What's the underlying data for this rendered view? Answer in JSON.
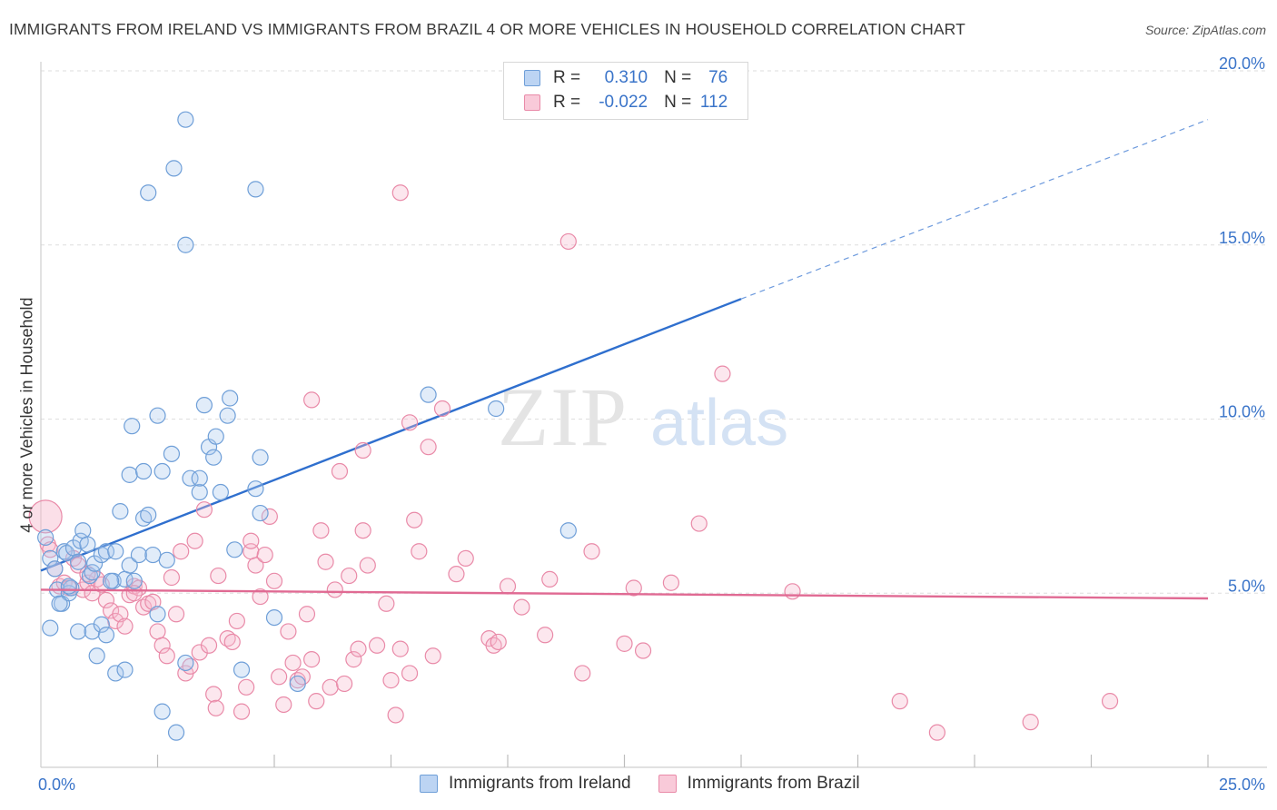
{
  "title": "IMMIGRANTS FROM IRELAND VS IMMIGRANTS FROM BRAZIL 4 OR MORE VEHICLES IN HOUSEHOLD CORRELATION CHART",
  "source": "Source: ZipAtlas.com",
  "watermark": {
    "zip": "ZIP",
    "atlas": "atlas"
  },
  "legend": {
    "r_label": "R =",
    "n_label": "N =",
    "series": [
      {
        "r": "0.310",
        "n": "76"
      },
      {
        "r": "-0.022",
        "n": "112"
      }
    ]
  },
  "bottom_legend": [
    "Immigrants from Ireland",
    "Immigrants from Brazil"
  ],
  "colors": {
    "ireland_fill": "#a9c8ef",
    "ireland_stroke": "#6f9fd8",
    "ireland_line": "#2f6fce",
    "brazil_fill": "#f6b9cd",
    "brazil_stroke": "#e98aa8",
    "brazil_line": "#e06a93",
    "tick_text": "#3a74c9",
    "grid": "#dedede"
  },
  "chart_data": {
    "type": "scatter",
    "title": "IMMIGRANTS FROM IRELAND VS IMMIGRANTS FROM BRAZIL 4 OR MORE VEHICLES IN HOUSEHOLD CORRELATION CHART",
    "xlabel": "",
    "ylabel": "4 or more Vehicles in Household",
    "xlim": [
      0,
      25
    ],
    "ylim": [
      0,
      20
    ],
    "x_tick_labels": [
      {
        "value": 0,
        "label": "0.0%"
      },
      {
        "value": 25,
        "label": "25.0%"
      }
    ],
    "x_minor_ticks": [
      2.5,
      5,
      7.5,
      10,
      12.5,
      15,
      17.5,
      20,
      22.5,
      25
    ],
    "y_ticks": [
      {
        "value": 5,
        "label": "5.0%"
      },
      {
        "value": 10,
        "label": "10.0%"
      },
      {
        "value": 15,
        "label": "15.0%"
      },
      {
        "value": 20,
        "label": "20.0%"
      }
    ],
    "series": [
      {
        "name": "Immigrants from Ireland",
        "r": 0.31,
        "n": 76,
        "trend": {
          "x0": 0,
          "y0": 5.65,
          "x1": 15,
          "y1": 13.45,
          "dash_to_x": 25,
          "dash_to_y": 18.6
        },
        "points": [
          [
            0.1,
            6.6
          ],
          [
            0.2,
            6.0
          ],
          [
            0.3,
            5.7
          ],
          [
            0.35,
            5.1
          ],
          [
            0.45,
            4.7
          ],
          [
            0.5,
            6.2
          ],
          [
            0.55,
            6.15
          ],
          [
            0.6,
            5.0
          ],
          [
            0.65,
            5.15
          ],
          [
            0.7,
            6.3
          ],
          [
            0.8,
            5.9
          ],
          [
            0.85,
            6.5
          ],
          [
            0.9,
            6.8
          ],
          [
            1.0,
            6.4
          ],
          [
            1.05,
            5.5
          ],
          [
            1.1,
            5.6
          ],
          [
            1.15,
            5.85
          ],
          [
            1.3,
            6.1
          ],
          [
            1.4,
            6.2
          ],
          [
            1.55,
            5.35
          ],
          [
            1.6,
            6.2
          ],
          [
            1.7,
            7.35
          ],
          [
            1.8,
            5.4
          ],
          [
            1.9,
            5.8
          ],
          [
            2.0,
            5.35
          ],
          [
            2.1,
            6.1
          ],
          [
            2.2,
            7.15
          ],
          [
            2.3,
            7.25
          ],
          [
            2.4,
            6.1
          ],
          [
            2.5,
            4.4
          ],
          [
            2.7,
            5.95
          ],
          [
            0.2,
            4.0
          ],
          [
            0.4,
            4.7
          ],
          [
            0.8,
            3.9
          ],
          [
            1.1,
            3.9
          ],
          [
            1.2,
            3.2
          ],
          [
            1.3,
            4.1
          ],
          [
            1.4,
            3.8
          ],
          [
            1.6,
            2.7
          ],
          [
            1.8,
            2.8
          ],
          [
            2.6,
            1.6
          ],
          [
            2.9,
            1.0
          ],
          [
            3.1,
            3.0
          ],
          [
            4.3,
            2.8
          ],
          [
            5.5,
            2.4
          ],
          [
            5.0,
            4.3
          ],
          [
            1.9,
            8.4
          ],
          [
            1.95,
            9.8
          ],
          [
            2.2,
            8.5
          ],
          [
            2.5,
            10.1
          ],
          [
            2.6,
            8.5
          ],
          [
            2.8,
            9.0
          ],
          [
            3.2,
            8.3
          ],
          [
            3.4,
            7.9
          ],
          [
            3.4,
            8.3
          ],
          [
            3.6,
            9.2
          ],
          [
            3.7,
            8.9
          ],
          [
            3.75,
            9.5
          ],
          [
            3.85,
            7.9
          ],
          [
            4.0,
            10.1
          ],
          [
            4.05,
            10.6
          ],
          [
            4.15,
            6.25
          ],
          [
            4.6,
            8.0
          ],
          [
            4.7,
            7.3
          ],
          [
            4.7,
            8.9
          ],
          [
            3.5,
            10.4
          ],
          [
            3.1,
            15.0
          ],
          [
            2.85,
            17.2
          ],
          [
            3.1,
            18.6
          ],
          [
            2.3,
            16.5
          ],
          [
            4.6,
            16.6
          ],
          [
            8.3,
            10.7
          ],
          [
            9.75,
            10.3
          ],
          [
            11.3,
            6.8
          ],
          [
            0.6,
            5.2
          ],
          [
            1.5,
            5.35
          ]
        ]
      },
      {
        "name": "Immigrants from Brazil",
        "r": -0.022,
        "n": 112,
        "trend": {
          "x0": 0,
          "y0": 5.1,
          "x1": 25,
          "y1": 4.85
        },
        "points": [
          [
            0.1,
            7.2
          ],
          [
            0.15,
            6.4
          ],
          [
            0.2,
            6.25
          ],
          [
            0.3,
            5.7
          ],
          [
            0.4,
            5.2
          ],
          [
            0.5,
            5.3
          ],
          [
            0.6,
            5.15
          ],
          [
            0.7,
            6.0
          ],
          [
            0.8,
            5.8
          ],
          [
            0.9,
            5.1
          ],
          [
            1.0,
            5.3
          ],
          [
            1.1,
            5.0
          ],
          [
            1.2,
            5.4
          ],
          [
            1.3,
            5.25
          ],
          [
            1.4,
            4.8
          ],
          [
            1.5,
            4.5
          ],
          [
            1.6,
            4.2
          ],
          [
            1.7,
            4.4
          ],
          [
            1.8,
            4.05
          ],
          [
            1.9,
            4.95
          ],
          [
            2.0,
            5.2
          ],
          [
            2.1,
            5.15
          ],
          [
            2.2,
            4.6
          ],
          [
            2.3,
            4.7
          ],
          [
            2.4,
            4.75
          ],
          [
            2.5,
            3.9
          ],
          [
            2.6,
            3.5
          ],
          [
            2.7,
            3.2
          ],
          [
            2.8,
            5.45
          ],
          [
            2.9,
            4.4
          ],
          [
            3.0,
            6.2
          ],
          [
            3.1,
            2.7
          ],
          [
            3.2,
            2.9
          ],
          [
            3.3,
            6.5
          ],
          [
            3.4,
            3.3
          ],
          [
            3.5,
            7.4
          ],
          [
            3.6,
            3.5
          ],
          [
            3.7,
            2.1
          ],
          [
            3.75,
            1.7
          ],
          [
            3.8,
            5.5
          ],
          [
            4.0,
            3.7
          ],
          [
            4.1,
            3.6
          ],
          [
            4.2,
            4.2
          ],
          [
            4.3,
            1.6
          ],
          [
            4.4,
            2.3
          ],
          [
            4.5,
            6.2
          ],
          [
            4.6,
            5.8
          ],
          [
            4.7,
            4.9
          ],
          [
            4.8,
            6.1
          ],
          [
            4.9,
            7.2
          ],
          [
            5.0,
            5.35
          ],
          [
            5.1,
            2.6
          ],
          [
            5.2,
            1.8
          ],
          [
            5.3,
            3.9
          ],
          [
            5.4,
            3.0
          ],
          [
            5.5,
            2.5
          ],
          [
            5.6,
            2.6
          ],
          [
            5.7,
            4.4
          ],
          [
            5.8,
            3.1
          ],
          [
            5.9,
            1.9
          ],
          [
            6.0,
            6.8
          ],
          [
            6.1,
            5.9
          ],
          [
            6.2,
            2.3
          ],
          [
            6.3,
            5.1
          ],
          [
            6.4,
            8.5
          ],
          [
            6.5,
            2.4
          ],
          [
            6.6,
            5.5
          ],
          [
            6.7,
            3.1
          ],
          [
            6.8,
            3.4
          ],
          [
            6.9,
            6.8
          ],
          [
            7.0,
            5.8
          ],
          [
            7.2,
            3.5
          ],
          [
            7.4,
            4.7
          ],
          [
            7.5,
            2.5
          ],
          [
            7.6,
            1.5
          ],
          [
            7.7,
            3.4
          ],
          [
            7.9,
            2.7
          ],
          [
            8.1,
            6.2
          ],
          [
            8.3,
            9.2
          ],
          [
            8.4,
            3.2
          ],
          [
            8.6,
            10.3
          ],
          [
            8.9,
            5.55
          ],
          [
            9.1,
            6.0
          ],
          [
            9.6,
            3.7
          ],
          [
            9.7,
            3.5
          ],
          [
            9.8,
            3.6
          ],
          [
            10.0,
            5.2
          ],
          [
            10.3,
            4.6
          ],
          [
            10.8,
            3.8
          ],
          [
            10.9,
            5.4
          ],
          [
            11.8,
            6.2
          ],
          [
            11.6,
            2.7
          ],
          [
            12.5,
            3.55
          ],
          [
            12.7,
            5.15
          ],
          [
            12.9,
            3.35
          ],
          [
            13.5,
            5.3
          ],
          [
            14.1,
            7.0
          ],
          [
            14.6,
            11.3
          ],
          [
            7.9,
            9.9
          ],
          [
            8.0,
            7.1
          ],
          [
            6.9,
            9.1
          ],
          [
            5.8,
            10.55
          ],
          [
            7.7,
            16.5
          ],
          [
            11.3,
            15.1
          ],
          [
            16.1,
            5.05
          ],
          [
            18.4,
            1.9
          ],
          [
            19.2,
            1.0
          ],
          [
            21.2,
            1.3
          ],
          [
            22.9,
            1.9
          ],
          [
            4.5,
            6.5
          ],
          [
            2.0,
            5.0
          ],
          [
            1.0,
            5.55
          ]
        ]
      }
    ]
  }
}
